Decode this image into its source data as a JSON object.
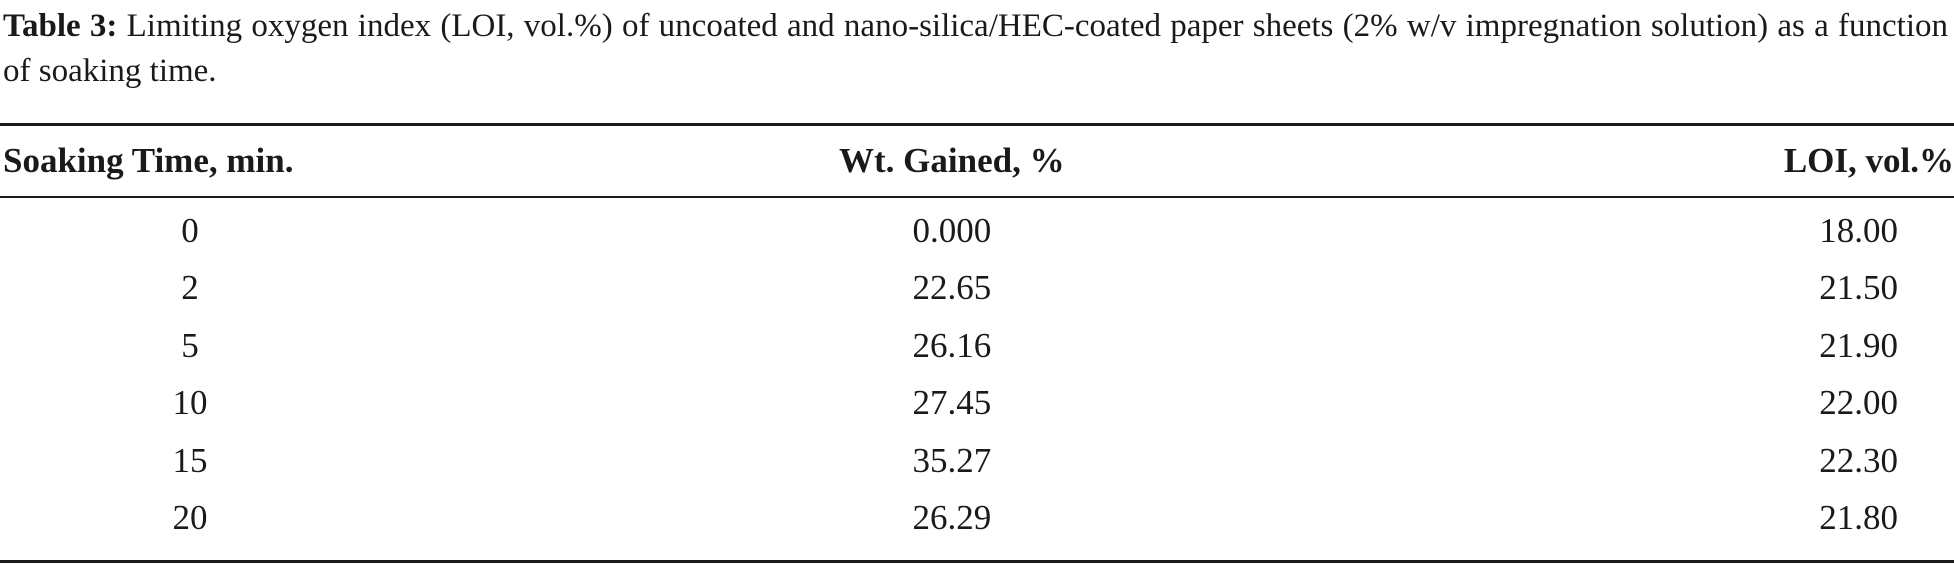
{
  "caption": {
    "label": "Table 3:",
    "text": "Limiting oxygen index (LOI, vol.%) of uncoated and nano-silica/HEC-coated paper sheets (2% w/v impregnation solution) as a function of soaking time."
  },
  "table": {
    "headers": [
      "Soaking Time, min.",
      "Wt. Gained, %",
      "LOI, vol.%"
    ],
    "rows": [
      [
        "0",
        "0.000",
        "18.00"
      ],
      [
        "2",
        "22.65",
        "21.50"
      ],
      [
        "5",
        "26.16",
        "21.90"
      ],
      [
        "10",
        "27.45",
        "22.00"
      ],
      [
        "15",
        "35.27",
        "22.30"
      ],
      [
        "20",
        "26.29",
        "21.80"
      ]
    ]
  }
}
